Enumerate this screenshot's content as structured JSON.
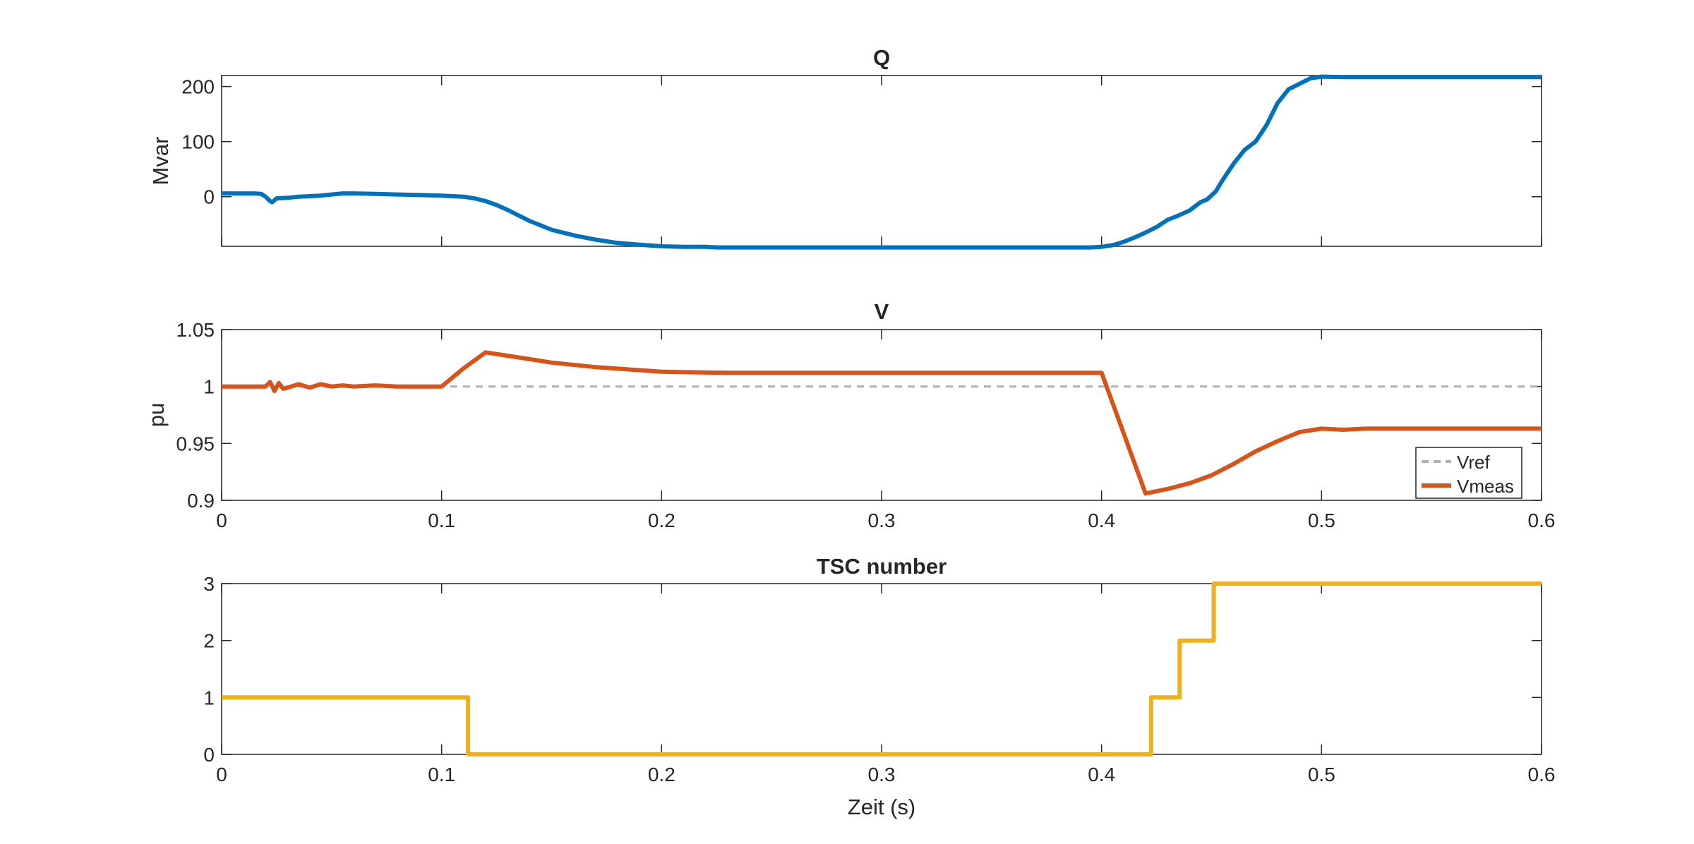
{
  "chart_data": [
    {
      "type": "line",
      "title": "Q",
      "ylabel": "Mvar",
      "xlabel": "",
      "xlim": [
        0,
        0.6
      ],
      "ylim": [
        -90,
        220
      ],
      "yticks": [
        0,
        100,
        200
      ],
      "xticks": [],
      "grid": false,
      "colors": [
        "#0072BD"
      ],
      "series": [
        {
          "x": [
            0,
            0.015,
            0.018,
            0.02,
            0.022,
            0.023,
            0.025,
            0.03,
            0.035,
            0.04,
            0.045,
            0.05,
            0.055,
            0.06,
            0.07,
            0.08,
            0.09,
            0.1,
            0.105,
            0.11,
            0.115,
            0.12,
            0.125,
            0.13,
            0.14,
            0.15,
            0.16,
            0.17,
            0.18,
            0.19,
            0.2,
            0.21,
            0.22,
            0.225,
            0.23,
            0.26,
            0.3,
            0.35,
            0.395,
            0.4,
            0.405,
            0.41,
            0.415,
            0.42,
            0.425,
            0.43,
            0.435,
            0.44,
            0.445,
            0.448,
            0.452,
            0.455,
            0.46,
            0.465,
            0.47,
            0.475,
            0.48,
            0.485,
            0.49,
            0.495,
            0.5,
            0.51,
            0.52,
            0.55,
            0.6
          ],
          "values": [
            6,
            6,
            5,
            0,
            -8,
            -10,
            -3,
            -2,
            0,
            1,
            2,
            4,
            6,
            6,
            5,
            4,
            3,
            2,
            1,
            0,
            -3,
            -8,
            -15,
            -24,
            -44,
            -60,
            -70,
            -78,
            -84,
            -87,
            -90,
            -91,
            -91,
            -92,
            -92,
            -92,
            -92,
            -92,
            -92,
            -91,
            -88,
            -82,
            -74,
            -65,
            -55,
            -42,
            -34,
            -25,
            -10,
            -5,
            10,
            30,
            60,
            85,
            100,
            130,
            170,
            195,
            205,
            215,
            218,
            217,
            217,
            217,
            217
          ]
        }
      ]
    },
    {
      "type": "line",
      "title": "V",
      "ylabel": "pu",
      "xlabel": "",
      "xlim": [
        0,
        0.6
      ],
      "ylim": [
        0.9,
        1.05
      ],
      "yticks": [
        0.9,
        0.95,
        1,
        1.05
      ],
      "ytick_labels": [
        "0.9",
        "0.95",
        "1",
        "1.05"
      ],
      "xticks": [
        0,
        0.1,
        0.2,
        0.3,
        0.4,
        0.5,
        0.6
      ],
      "xtick_labels": [
        "0",
        "0.1",
        "0.2",
        "0.3",
        "0.4",
        "0.5",
        "0.6"
      ],
      "grid": false,
      "legend": {
        "location": "bottom-right",
        "entries": [
          "Vref",
          "Vmeas"
        ]
      },
      "colors": [
        "#B0B0B0",
        "#D95319"
      ],
      "series": [
        {
          "name": "Vref",
          "style": "dashed",
          "x": [
            0,
            0.6
          ],
          "values": [
            1.0,
            1.0
          ]
        },
        {
          "name": "Vmeas",
          "style": "solid",
          "x": [
            0,
            0.02,
            0.022,
            0.024,
            0.026,
            0.028,
            0.03,
            0.035,
            0.04,
            0.045,
            0.05,
            0.055,
            0.06,
            0.07,
            0.08,
            0.09,
            0.1,
            0.11,
            0.12,
            0.13,
            0.14,
            0.15,
            0.17,
            0.2,
            0.23,
            0.3,
            0.4,
            0.42,
            0.43,
            0.44,
            0.45,
            0.46,
            0.47,
            0.48,
            0.49,
            0.5,
            0.51,
            0.52,
            0.55,
            0.6
          ],
          "values": [
            1.0,
            1.0,
            1.004,
            0.996,
            1.003,
            0.998,
            0.999,
            1.002,
            0.999,
            1.002,
            1.0,
            1.001,
            1.0,
            1.001,
            1.0,
            1.0,
            1.0,
            1.016,
            1.03,
            1.027,
            1.024,
            1.021,
            1.017,
            1.013,
            1.012,
            1.012,
            1.012,
            0.906,
            0.91,
            0.915,
            0.922,
            0.932,
            0.943,
            0.952,
            0.96,
            0.963,
            0.962,
            0.963,
            0.963,
            0.963
          ]
        }
      ]
    },
    {
      "type": "line",
      "title": "TSC number",
      "ylabel": "",
      "xlabel": "Zeit (s)",
      "xlim": [
        0,
        0.6
      ],
      "ylim": [
        0,
        3
      ],
      "yticks": [
        0,
        1,
        2,
        3
      ],
      "ytick_labels": [
        "0",
        "1",
        "2",
        "3"
      ],
      "xticks": [
        0,
        0.1,
        0.2,
        0.3,
        0.4,
        0.5,
        0.6
      ],
      "xtick_labels": [
        "0",
        "0.1",
        "0.2",
        "0.3",
        "0.4",
        "0.5",
        "0.6"
      ],
      "grid": false,
      "colors": [
        "#EDB120"
      ],
      "series": [
        {
          "x": [
            0,
            0.112,
            0.112,
            0.4225,
            0.4225,
            0.4355,
            0.4355,
            0.451,
            0.451,
            0.6
          ],
          "values": [
            1,
            1,
            0,
            0,
            1,
            1,
            2,
            2,
            3,
            3
          ]
        }
      ]
    }
  ]
}
